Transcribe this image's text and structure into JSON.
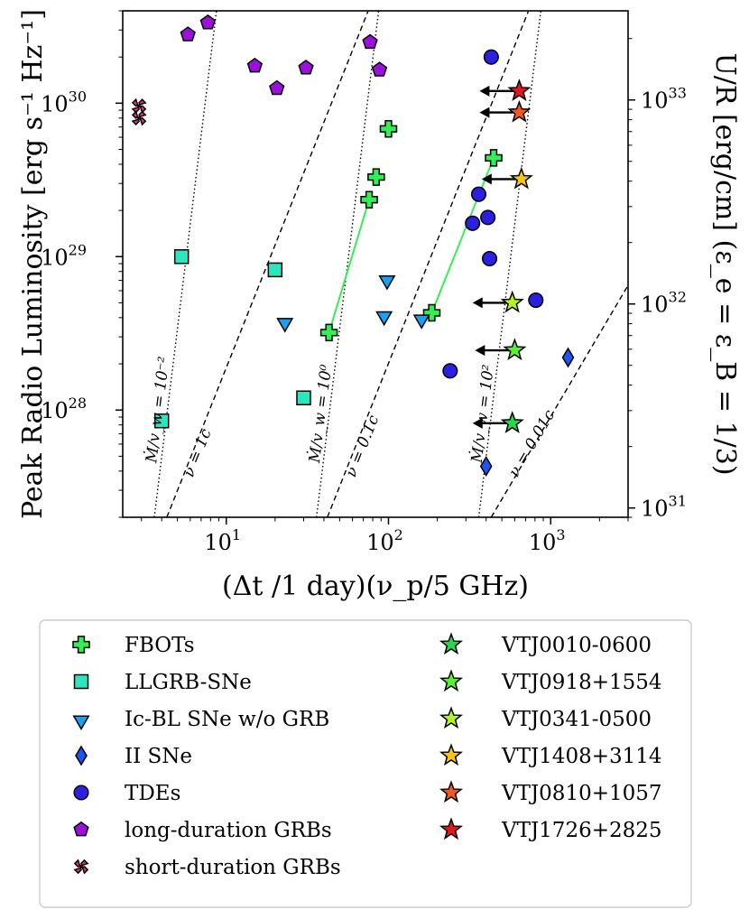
{
  "chart_data": {
    "type": "scatter",
    "title": "",
    "xlabel": "(Δt /1 day)(ν_p/5 GHz)",
    "ylabel_left": "Peak Radio Luminosity [erg s⁻¹ Hz⁻¹]",
    "ylabel_right": "U/R [erg/cm] (ε_e = ε_B = 1/3)",
    "xscale": "log",
    "yscale": "log",
    "xlim": [
      2.3,
      3000
    ],
    "ylim": [
      2e+27,
      4e+30
    ],
    "x_ticks": [
      {
        "value": 10,
        "label": "10",
        "exp": "1"
      },
      {
        "value": 100,
        "label": "10",
        "exp": "2"
      },
      {
        "value": 1000,
        "label": "10",
        "exp": "3"
      }
    ],
    "y_ticks": [
      {
        "value": 1e+28,
        "label": "10",
        "exp": "28"
      },
      {
        "value": 1e+29,
        "label": "10",
        "exp": "29"
      },
      {
        "value": 1e+30,
        "label": "10",
        "exp": "30"
      }
    ],
    "y2_ticks": [
      {
        "value": 1e+31,
        "label": "10",
        "exp": "31"
      },
      {
        "value": 1e+32,
        "label": "10",
        "exp": "32"
      },
      {
        "value": 1e+33,
        "label": "10",
        "exp": "33"
      }
    ],
    "y2_mapping": {
      "y_at_1e31": 2.3e+27,
      "y_at_1e33": 1.05e+30
    },
    "reference_lines": [
      {
        "name": "mdot-1e-2",
        "style": "dotted",
        "points": [
          [
            3.6,
            2e+27
          ],
          [
            8.7,
            4e+30
          ]
        ],
        "label": "Ṁ/v_w = 10⁻²",
        "label_at": [
          3.7,
          4.5e+27
        ]
      },
      {
        "name": "nu-1c",
        "style": "dashed",
        "points": [
          [
            4.3,
            2e+27
          ],
          [
            75,
            4e+30
          ]
        ],
        "label": "ν = 1c",
        "label_at": [
          6.2,
          3.6e+27
        ]
      },
      {
        "name": "mdot-1e0",
        "style": "dotted",
        "points": [
          [
            36,
            2e+27
          ],
          [
            87,
            4e+30
          ]
        ],
        "label": "Ṁ/v_w = 10⁰",
        "label_at": [
          37.5,
          4.5e+27
        ]
      },
      {
        "name": "nu-0.1c",
        "style": "dashed",
        "points": [
          [
            42,
            2e+27
          ],
          [
            730,
            4e+30
          ]
        ],
        "label": "ν = 0.1c",
        "label_at": [
          62,
          3.6e+27
        ]
      },
      {
        "name": "mdot-1e2",
        "style": "dotted",
        "points": [
          [
            360,
            2e+27
          ],
          [
            870,
            4e+30
          ]
        ],
        "label": "Ṁ/v_w = 10²",
        "label_at": [
          375,
          4.5e+27
        ]
      },
      {
        "name": "nu-0.01c",
        "style": "dashed",
        "points": [
          [
            430,
            2e+27
          ],
          [
            3000,
            6.5e+28
          ]
        ],
        "label": "ν = 0.01c",
        "label_at": [
          620,
          3.6e+27
        ]
      }
    ],
    "series": [
      {
        "name": "FBOTs",
        "marker": "plus",
        "color": "#33ee55",
        "points": [
          [
            43,
            3.2e+28
          ],
          [
            76,
            2.35e+29
          ],
          [
            84,
            3.3e+29
          ],
          [
            100,
            6.8e+29
          ],
          [
            185,
            4.3e+28
          ],
          [
            445,
            4.4e+29
          ]
        ]
      },
      {
        "name": "LLGRB-SNe",
        "marker": "square",
        "color": "#2ee6be",
        "points": [
          [
            4.0,
            8.5e+27
          ],
          [
            5.3,
            1e+29
          ],
          [
            20,
            8.2e+28
          ],
          [
            30,
            1.2e+28
          ]
        ]
      },
      {
        "name": "Ic-BL SNe w/o GRB",
        "marker": "triangle-down",
        "color": "#1aa0f0",
        "points": [
          [
            23,
            3.8e+28
          ],
          [
            94,
            4.2e+28
          ],
          [
            98,
            7.2e+28
          ],
          [
            160,
            4e+28
          ]
        ]
      },
      {
        "name": "II SNe",
        "marker": "diamond",
        "color": "#1e55ee",
        "points": [
          [
            1280,
            2.2e+28
          ],
          [
            400,
            4.3e+27
          ]
        ]
      },
      {
        "name": "TDEs",
        "marker": "circle",
        "color": "#2c20e0",
        "points": [
          [
            330,
            1.65e+29
          ],
          [
            360,
            2.55e+29
          ],
          [
            410,
            1.8e+29
          ],
          [
            420,
            9.7e+28
          ],
          [
            240,
            1.8e+28
          ],
          [
            810,
            5.2e+28
          ],
          [
            430,
            2e+30
          ]
        ]
      },
      {
        "name": "long-duration GRBs",
        "marker": "pentagon",
        "color": "#9c10dc",
        "points": [
          [
            5.8,
            2.8e+30
          ],
          [
            7.7,
            3.35e+30
          ],
          [
            15,
            1.75e+30
          ],
          [
            20.5,
            1.25e+30
          ],
          [
            31,
            1.7e+30
          ],
          [
            77,
            2.5e+30
          ],
          [
            88,
            1.65e+30
          ]
        ]
      },
      {
        "name": "short-duration GRBs",
        "marker": "x",
        "color": "#e8307a",
        "points": [
          [
            2.9,
            9.6e+29
          ],
          [
            2.9,
            8e+29
          ]
        ]
      },
      {
        "name": "VTJ0010-0600",
        "marker": "star",
        "color": "#2cd64a",
        "points": [
          [
            580,
            8.2e+27
          ]
        ],
        "upper_limit": true
      },
      {
        "name": "VTJ0918+1554",
        "marker": "star",
        "color": "#5cf034",
        "points": [
          [
            600,
            2.45e+28
          ]
        ],
        "upper_limit": true
      },
      {
        "name": "VTJ0341-0500",
        "marker": "star",
        "color": "#b4f22a",
        "points": [
          [
            580,
            5e+28
          ]
        ],
        "upper_limit": true
      },
      {
        "name": "VTJ1408+3114",
        "marker": "star",
        "color": "#f5c518",
        "points": [
          [
            660,
            3.2e+29
          ]
        ],
        "upper_limit": true
      },
      {
        "name": "VTJ0810+1057",
        "marker": "star",
        "color": "#f25a1c",
        "points": [
          [
            640,
            8.7e+29
          ]
        ],
        "upper_limit": true
      },
      {
        "name": "VTJ1726+2825",
        "marker": "star",
        "color": "#e0181e",
        "points": [
          [
            640,
            1.2e+30
          ]
        ],
        "upper_limit": true
      }
    ],
    "connectors": [
      {
        "color": "#33ee55",
        "points": [
          [
            43,
            3.2e+28
          ],
          [
            76,
            2.35e+29
          ]
        ]
      },
      {
        "color": "#33ee55",
        "points": [
          [
            185,
            4.3e+28
          ],
          [
            445,
            4.4e+29
          ]
        ]
      }
    ],
    "legend": {
      "position": "bottom",
      "columns": 2,
      "entries": [
        "FBOTs",
        "LLGRB-SNe",
        "Ic-BL SNe w/o GRB",
        "II SNe",
        "TDEs",
        "long-duration GRBs",
        "short-duration GRBs",
        "VTJ0010-0600",
        "VTJ0918+1554",
        "VTJ0341-0500",
        "VTJ1408+3114",
        "VTJ0810+1057",
        "VTJ1726+2825"
      ]
    }
  }
}
